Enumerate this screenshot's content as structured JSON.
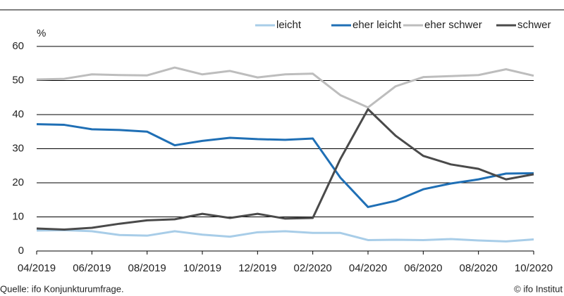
{
  "chart_data": {
    "type": "line",
    "y_unit_label": "%",
    "categories": [
      "04/2019",
      null,
      "06/2019",
      null,
      "08/2019",
      null,
      "10/2019",
      null,
      "12/2019",
      null,
      "02/2020",
      null,
      "04/2020",
      null,
      "06/2020",
      null,
      "08/2020",
      null,
      "10/2020"
    ],
    "series": [
      {
        "name": "leicht",
        "color": "#a8cde8",
        "values": [
          6.0,
          6.1,
          5.8,
          4.7,
          4.5,
          5.8,
          4.8,
          4.2,
          5.5,
          5.8,
          5.3,
          5.3,
          3.2,
          3.3,
          3.2,
          3.5,
          3.1,
          2.8,
          3.4
        ]
      },
      {
        "name": "eher leicht",
        "color": "#1f6fb5",
        "values": [
          37.2,
          37.0,
          35.7,
          35.5,
          35.0,
          31.0,
          32.3,
          33.2,
          32.8,
          32.6,
          33.0,
          21.5,
          12.9,
          14.7,
          18.1,
          19.8,
          21.0,
          22.7,
          22.8
        ]
      },
      {
        "name": "eher schwer",
        "color": "#bdbdbd",
        "values": [
          50.3,
          50.5,
          51.8,
          51.6,
          51.5,
          53.8,
          51.8,
          52.8,
          50.9,
          51.8,
          52.0,
          45.7,
          42.1,
          48.3,
          51.0,
          51.3,
          51.6,
          53.3,
          51.4
        ]
      },
      {
        "name": "schwer",
        "color": "#4a4a4a",
        "values": [
          6.6,
          6.3,
          6.8,
          8.0,
          9.0,
          9.3,
          10.9,
          9.7,
          10.9,
          9.5,
          9.7,
          27.0,
          41.6,
          33.8,
          27.9,
          25.4,
          24.1,
          21.0,
          22.5
        ]
      }
    ],
    "ylim": [
      0,
      60
    ],
    "yticks": [
      0,
      10,
      20,
      30,
      40,
      50,
      60
    ],
    "grid": true,
    "legend": "top-right",
    "source": "Quelle: ifo Konjunkturumfrage.",
    "copyright": "© ifo Institut"
  }
}
